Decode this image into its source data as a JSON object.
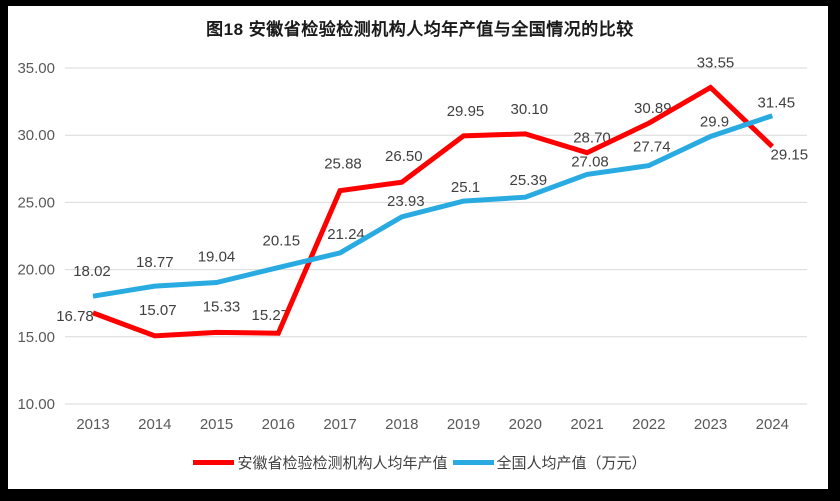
{
  "page": {
    "title": "图18 安徽省检验检测机构人均年产值与全国情况的比较",
    "frame_color": "#000000",
    "paper_color": "#FFFFFF"
  },
  "chart_data": {
    "type": "line",
    "title": "图18 安徽省检验检测机构人均年产值与全国情况的比较",
    "x": [
      "2013",
      "2014",
      "2015",
      "2016",
      "2017",
      "2018",
      "2019",
      "2020",
      "2021",
      "2022",
      "2023",
      "2024"
    ],
    "xlabel": "",
    "ylabel": "",
    "ylim": [
      10,
      35
    ],
    "yticks": {
      "values": [
        35,
        30,
        25,
        20,
        15,
        10
      ],
      "labels": [
        "35.00",
        "30.00",
        "25.00",
        "20.00",
        "15.00",
        "10.00"
      ]
    },
    "grid": true,
    "gridline_color": "#D9D9D9",
    "tick_color": "#595959",
    "data_label_color": "#404040",
    "legend_position": "bottom",
    "series": [
      {
        "name": "安徽省检验检测机构人均年产值",
        "color": "#FF0000",
        "values": [
          16.78,
          15.07,
          15.33,
          15.27,
          25.88,
          26.5,
          29.95,
          30.1,
          28.7,
          30.89,
          33.55,
          29.15
        ],
        "labels": [
          "16.78",
          "15.07",
          "15.33",
          "15.27",
          "25.88",
          "26.50",
          "29.95",
          "30.10",
          "28.70",
          "30.89",
          "33.55",
          "29.15"
        ],
        "label_offsets": [
          [
            -18,
            8
          ],
          [
            3,
            -21
          ],
          [
            5,
            -21
          ],
          [
            -8,
            -13
          ],
          [
            3,
            -22
          ],
          [
            2,
            -21
          ],
          [
            2,
            -20
          ],
          [
            4,
            -20
          ],
          [
            5,
            -10
          ],
          [
            4,
            -10
          ],
          [
            5,
            -20
          ],
          [
            17,
            13
          ]
        ]
      },
      {
        "name": "全国人均产值（万元）",
        "color": "#29ABE2",
        "values": [
          18.02,
          18.77,
          19.04,
          20.15,
          21.24,
          23.93,
          25.1,
          25.39,
          27.08,
          27.74,
          29.9,
          31.45
        ],
        "labels": [
          "18.02",
          "18.77",
          "19.04",
          "20.15",
          "21.24",
          "23.93",
          "25.1",
          "25.39",
          "27.08",
          "27.74",
          "29.9",
          "31.45"
        ],
        "label_offsets": [
          [
            -1,
            -20
          ],
          [
            0,
            -19
          ],
          [
            0,
            -21
          ],
          [
            3,
            -22
          ],
          [
            6,
            -14
          ],
          [
            4,
            -11
          ],
          [
            2,
            -9
          ],
          [
            3,
            -12
          ],
          [
            3,
            -8
          ],
          [
            3,
            -14
          ],
          [
            4,
            -10
          ],
          [
            4,
            -8
          ]
        ]
      }
    ]
  }
}
